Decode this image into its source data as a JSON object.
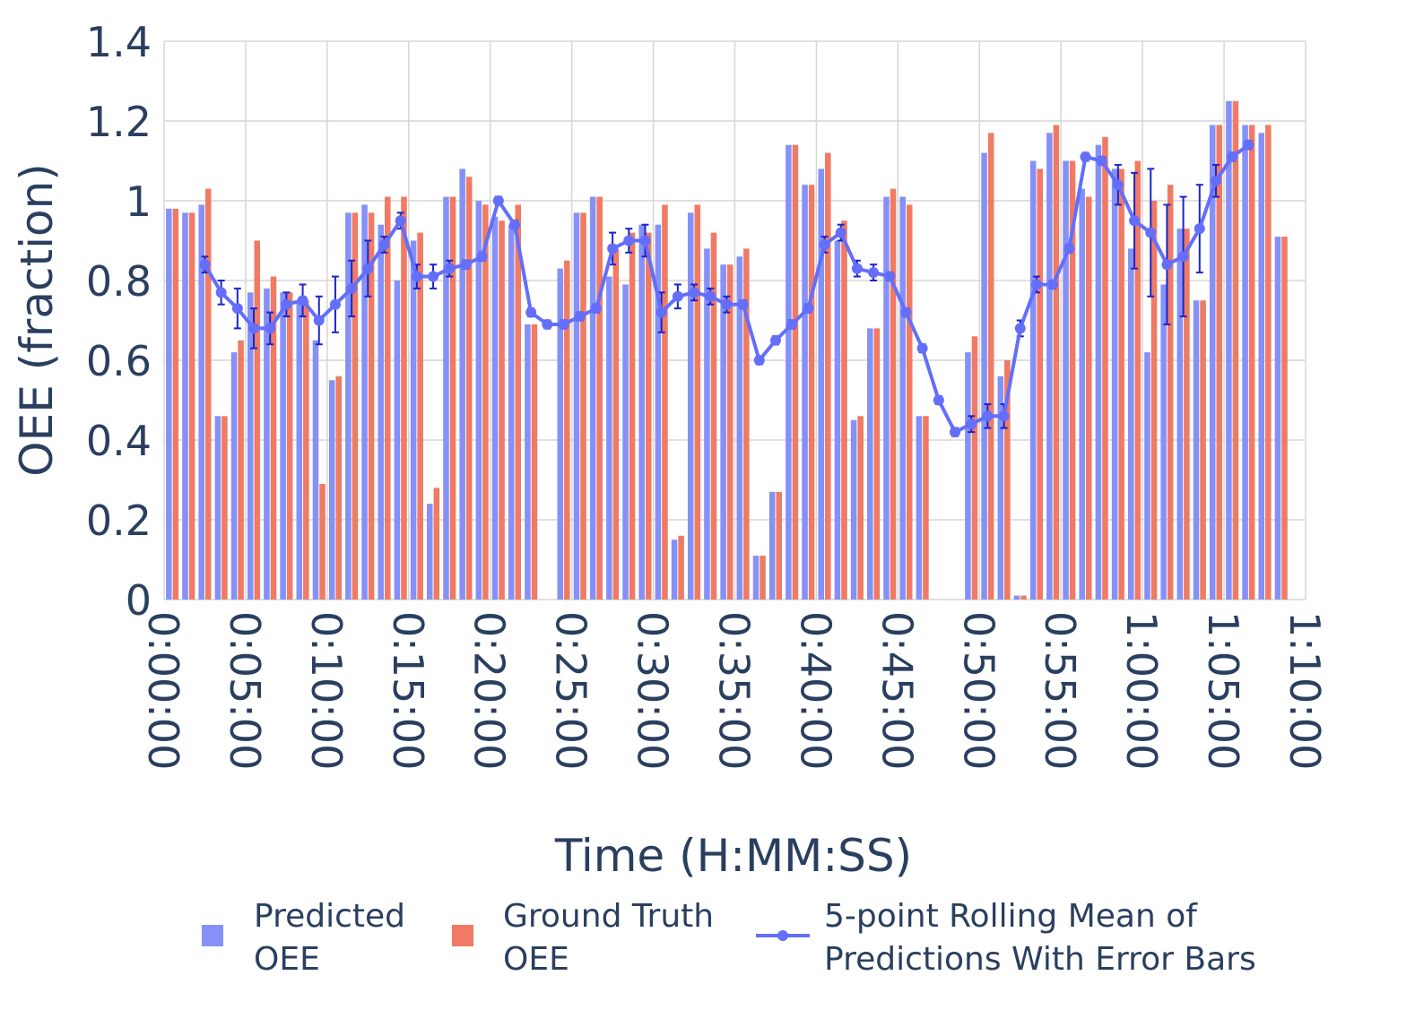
{
  "chart_data": {
    "type": "bar",
    "title": "",
    "xlabel": "Time (H:MM:SS)",
    "ylabel": "OEE (fraction)",
    "x_unit": "minutes",
    "xlim": [
      0,
      70
    ],
    "ylim": [
      0,
      1.4
    ],
    "x_ticks": [
      "0:00:00",
      "0:05:00",
      "0:10:00",
      "0:15:00",
      "0:20:00",
      "0:25:00",
      "0:30:00",
      "0:35:00",
      "0:40:00",
      "0:45:00",
      "0:50:00",
      "0:55:00",
      "1:00:00",
      "1:05:00",
      "1:10:00"
    ],
    "y_ticks": [
      "0",
      "0.2",
      "0.4",
      "0.6",
      "0.8",
      "1",
      "1.2",
      "1.4"
    ],
    "grid": true,
    "legend_position": "bottom",
    "colors": {
      "predicted": "#8591f7",
      "ground_truth": "#f07a64",
      "rolling": "#636efa",
      "error_bar": "#1c24c9",
      "grid": "#d6d6d6",
      "text": "#2a3f5f"
    },
    "x": [
      1,
      2,
      3,
      4,
      5,
      6,
      7,
      8,
      9,
      10,
      11,
      12,
      13,
      14,
      15,
      16,
      17,
      18,
      19,
      20,
      21,
      22,
      23,
      24,
      25,
      26,
      27,
      28,
      29,
      30,
      31,
      32,
      33,
      34,
      35,
      36,
      37,
      38,
      39,
      40,
      41,
      42,
      43,
      44,
      45,
      46,
      47,
      48,
      49,
      50,
      51,
      52,
      53,
      54,
      55,
      56,
      57,
      58,
      59,
      60,
      61,
      62,
      63,
      64,
      65,
      66,
      67,
      68,
      69
    ],
    "series": [
      {
        "name": "Predicted OEE",
        "kind": "bar",
        "values": [
          0.98,
          0.97,
          0.99,
          0.46,
          0.62,
          0.77,
          0.78,
          0.77,
          0.75,
          0.65,
          0.55,
          0.97,
          0.99,
          0.94,
          0.8,
          0.9,
          0.24,
          1.01,
          1.08,
          1.0,
          0.96,
          0.94,
          0.69,
          0,
          0.83,
          0.97,
          1.01,
          0.81,
          0.79,
          0.94,
          0.94,
          0.15,
          0.97,
          0.88,
          0.84,
          0.86,
          0.11,
          0.27,
          1.14,
          1.04,
          1.08,
          0.9,
          0.45,
          0.68,
          1.01,
          1.01,
          0.46,
          0,
          0,
          0.62,
          1.12,
          0.56,
          0.01,
          1.1,
          1.17,
          1.1,
          1.03,
          1.14,
          1.08,
          0.88,
          0.62,
          0.79,
          0.93,
          0.75,
          1.19,
          1.25,
          1.19,
          1.17,
          0.91
        ]
      },
      {
        "name": "Ground Truth OEE",
        "kind": "bar",
        "values": [
          0.98,
          0.97,
          1.03,
          0.46,
          0.65,
          0.9,
          0.81,
          0.77,
          0.75,
          0.29,
          0.56,
          0.97,
          0.97,
          1.01,
          1.01,
          0.92,
          0.28,
          1.01,
          1.06,
          0.99,
          0.95,
          0.99,
          0.69,
          0,
          0.85,
          0.97,
          1.01,
          0.88,
          0.92,
          0.92,
          0.99,
          0.16,
          0.99,
          0.92,
          0.84,
          0.88,
          0.11,
          0.27,
          1.14,
          1.04,
          1.12,
          0.95,
          0.46,
          0.68,
          1.03,
          0.99,
          0.46,
          0,
          0,
          0.66,
          1.17,
          0.6,
          0.01,
          1.08,
          1.19,
          1.1,
          1.01,
          1.16,
          1.08,
          1.1,
          1.0,
          1.04,
          0.93,
          0.75,
          1.19,
          1.25,
          1.19,
          1.19,
          0.91
        ]
      },
      {
        "name": "5-point Rolling Mean of Predictions With Error Bars",
        "kind": "line",
        "x": [
          3,
          4,
          5,
          6,
          7,
          8,
          9,
          10,
          11,
          12,
          13,
          14,
          15,
          16,
          17,
          18,
          19,
          20,
          21,
          22,
          23,
          24,
          25,
          26,
          27,
          28,
          29,
          30,
          31,
          32,
          33,
          34,
          35,
          36,
          37,
          38,
          39,
          40,
          41,
          42,
          43,
          44,
          45,
          46,
          47,
          48,
          49,
          50,
          51,
          52,
          53,
          54,
          55,
          56,
          57,
          58,
          59,
          60,
          61,
          62,
          63,
          64,
          65,
          66,
          67
        ],
        "values": [
          0.84,
          0.77,
          0.73,
          0.68,
          0.68,
          0.74,
          0.75,
          0.7,
          0.74,
          0.78,
          0.83,
          0.89,
          0.95,
          0.81,
          0.81,
          0.83,
          0.84,
          0.86,
          1.0,
          0.94,
          0.72,
          0.69,
          0.69,
          0.71,
          0.73,
          0.88,
          0.9,
          0.9,
          0.72,
          0.76,
          0.77,
          0.76,
          0.74,
          0.74,
          0.6,
          0.65,
          0.69,
          0.73,
          0.89,
          0.92,
          0.83,
          0.82,
          0.81,
          0.72,
          0.63,
          0.5,
          0.42,
          0.44,
          0.46,
          0.46,
          0.68,
          0.79,
          0.79,
          0.88,
          1.11,
          1.1,
          1.04,
          0.95,
          0.92,
          0.84,
          0.86,
          0.93,
          1.05,
          1.11,
          1.14
        ],
        "error": [
          0.02,
          0.03,
          0.05,
          0.05,
          0.04,
          0.03,
          0.04,
          0.06,
          0.07,
          0.07,
          0.07,
          0.02,
          0.02,
          0.03,
          0.03,
          0.02,
          0.01,
          0.01,
          0.01,
          0.01,
          0.01,
          0.01,
          0.01,
          0.01,
          0.01,
          0.04,
          0.03,
          0.04,
          0.05,
          0.03,
          0.02,
          0.02,
          0.02,
          0.01,
          0.01,
          0.01,
          0.01,
          0.01,
          0.02,
          0.02,
          0.02,
          0.02,
          0.01,
          0.01,
          0.01,
          0.01,
          0.01,
          0.02,
          0.03,
          0.03,
          0.02,
          0.02,
          0.01,
          0.01,
          0.01,
          0.01,
          0.05,
          0.12,
          0.16,
          0.15,
          0.15,
          0.11,
          0.04,
          0.01,
          0.01
        ]
      }
    ],
    "legend": [
      {
        "key": "predicted",
        "lines": [
          "Predicted",
          "OEE"
        ]
      },
      {
        "key": "ground_truth",
        "lines": [
          "Ground Truth",
          "OEE"
        ]
      },
      {
        "key": "rolling",
        "lines": [
          "5-point Rolling Mean of",
          "Predictions With Error Bars"
        ]
      }
    ]
  }
}
